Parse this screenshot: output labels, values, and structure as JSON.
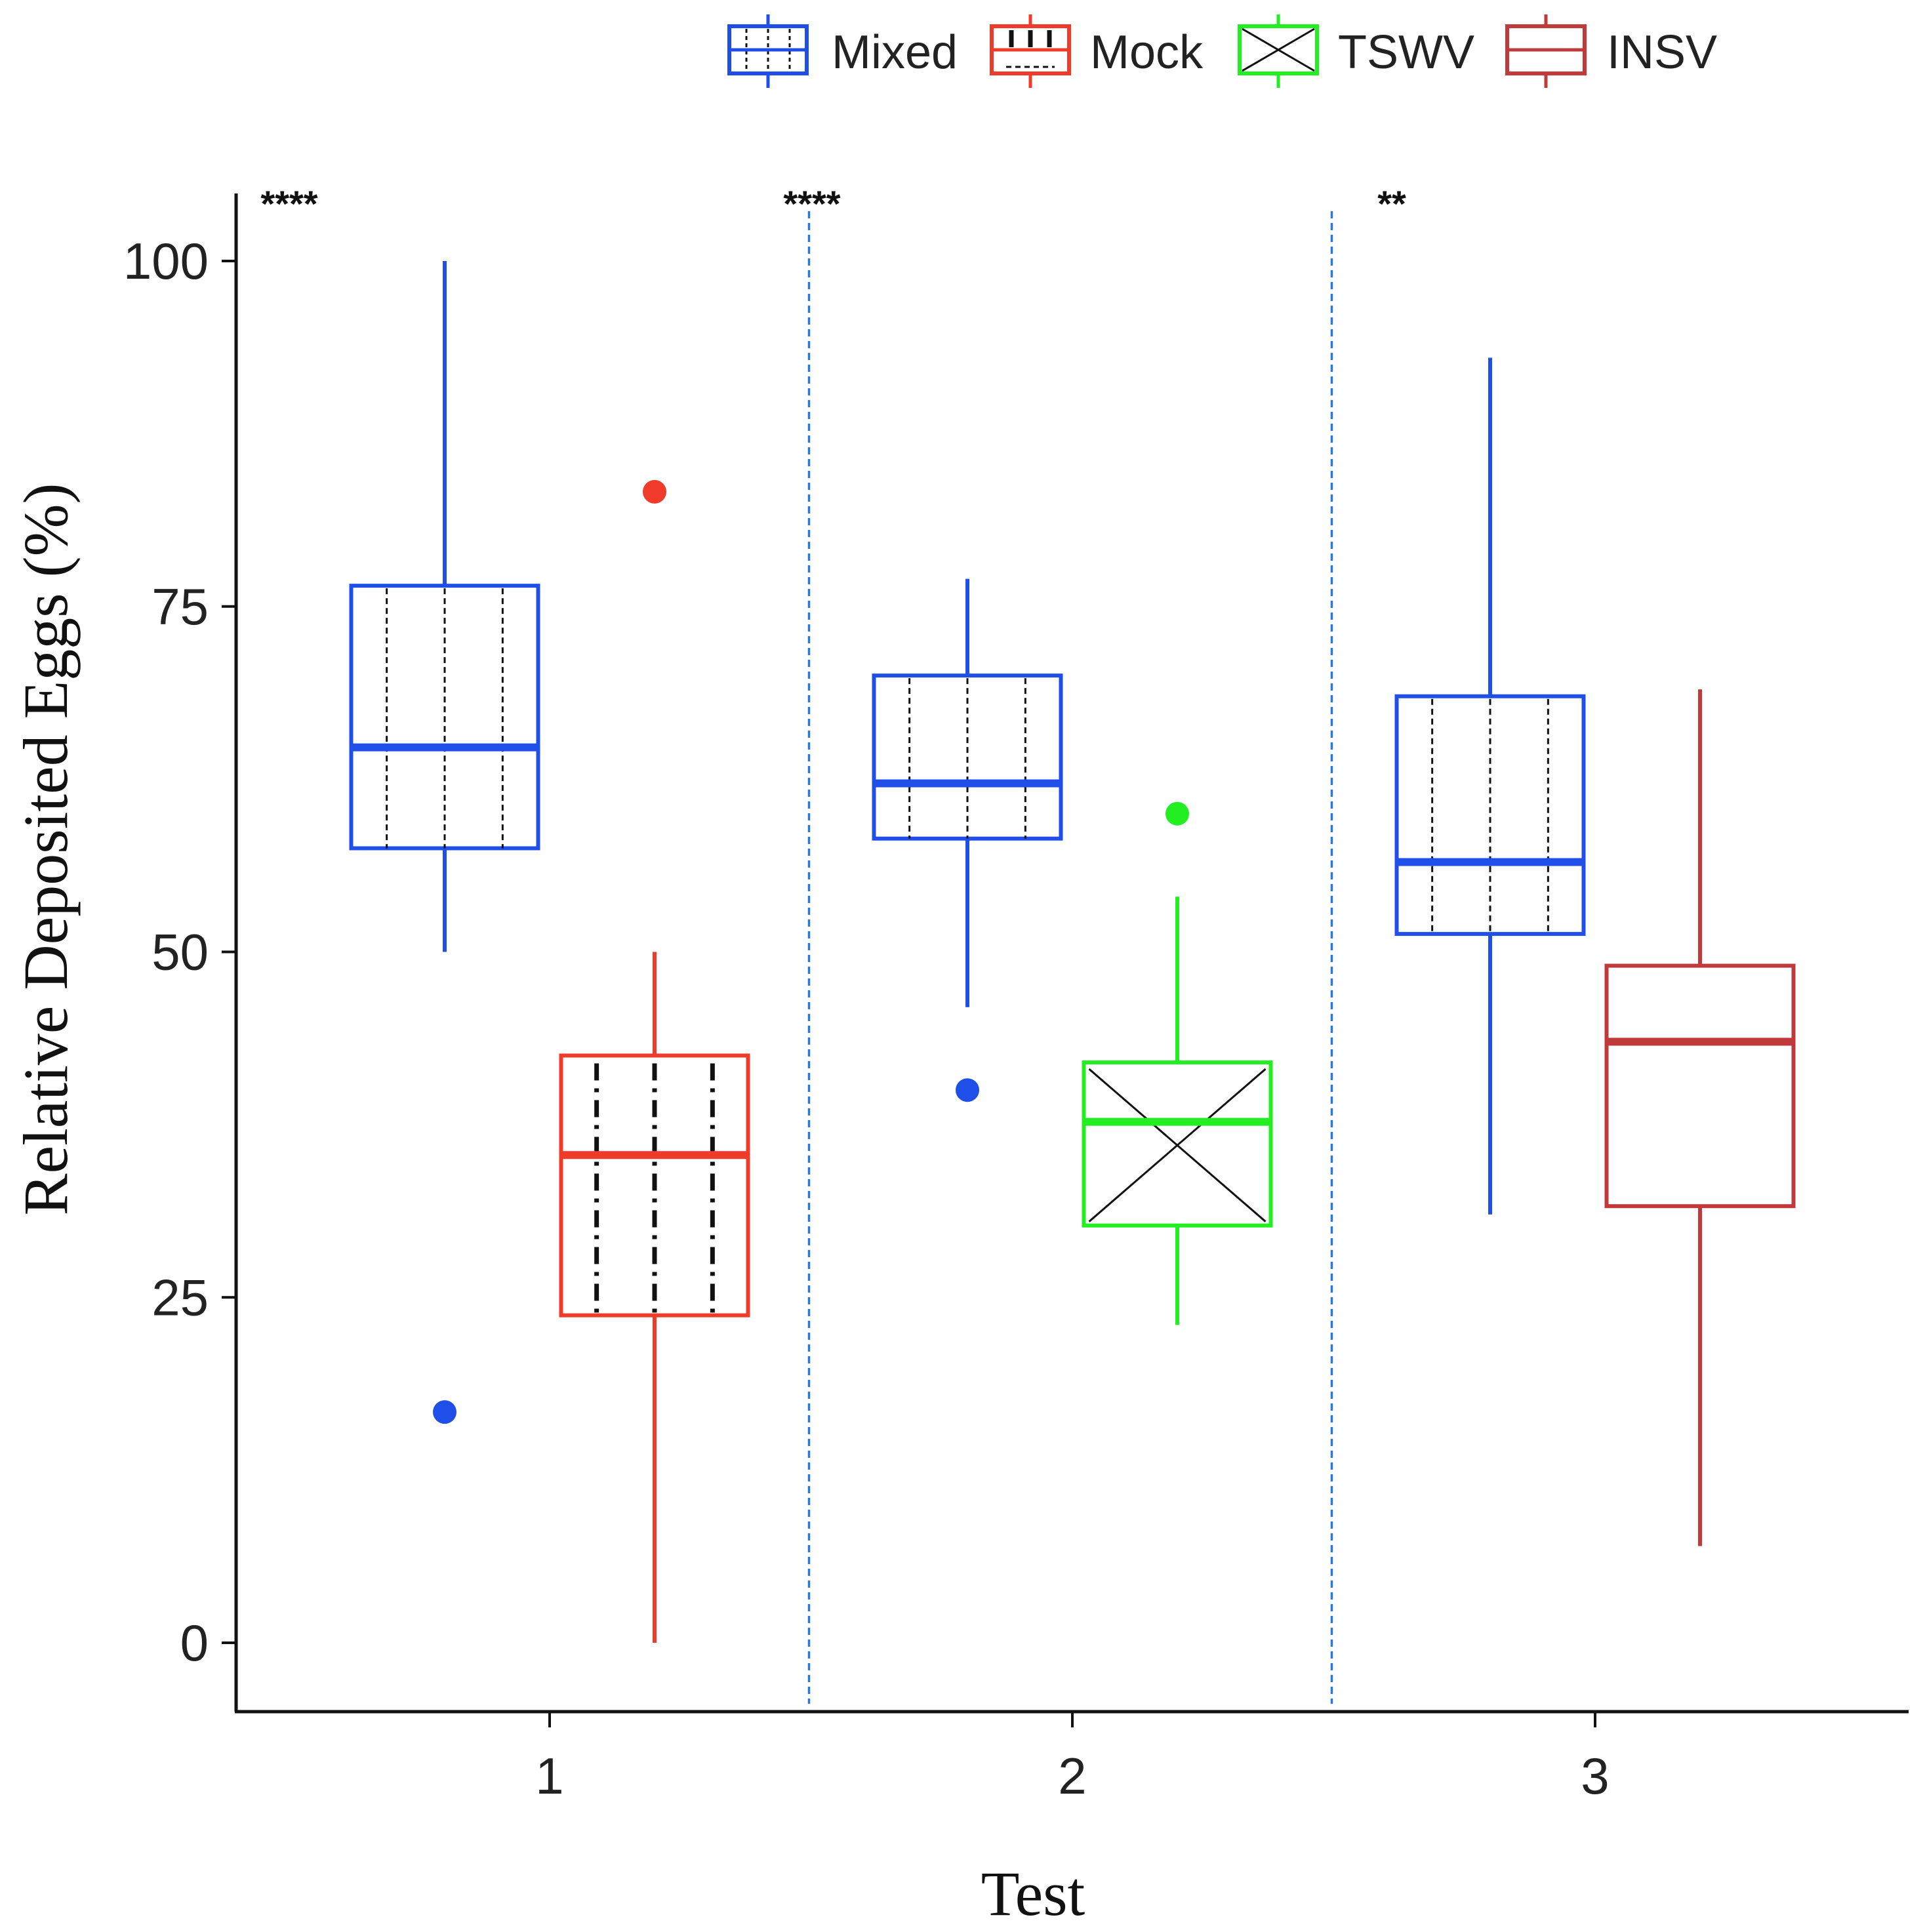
{
  "chart_data": {
    "type": "box",
    "title": "",
    "xlabel": "Test",
    "ylabel": "Relative Deposited Eggs (%)",
    "categories": [
      "1",
      "2",
      "3"
    ],
    "ylim": [
      -4,
      108
    ],
    "yticks": [
      0,
      25,
      50,
      75,
      100
    ],
    "legend": {
      "placement": "top",
      "entries": [
        "Mixed",
        "Mock",
        "TSWV",
        "INSV"
      ]
    },
    "significance": [
      "****",
      "****",
      "**"
    ],
    "series": [
      {
        "name": "Mixed",
        "color": "#1f4fe8",
        "pattern": "vdash",
        "boxes": [
          {
            "test": "1",
            "min": 50,
            "q1": 57.5,
            "median": 64.8,
            "q3": 76.5,
            "max": 100,
            "outliers": [
              16.7
            ]
          },
          {
            "test": "2",
            "min": 46,
            "q1": 58.2,
            "median": 62.2,
            "q3": 70.0,
            "max": 77,
            "outliers": [
              40
            ]
          },
          {
            "test": "3",
            "min": 31,
            "q1": 51.3,
            "median": 56.5,
            "q3": 68.5,
            "max": 93,
            "outliers": []
          }
        ]
      },
      {
        "name": "Mock",
        "color": "#f03a2a",
        "pattern": "dashdot",
        "boxes": [
          {
            "test": "1",
            "min": 0,
            "q1": 23.7,
            "median": 35.3,
            "q3": 42.5,
            "max": 50,
            "outliers": [
              83.3
            ]
          }
        ]
      },
      {
        "name": "TSWV",
        "color": "#22ee22",
        "pattern": "cross",
        "boxes": [
          {
            "test": "2",
            "min": 23,
            "q1": 30.2,
            "median": 37.7,
            "q3": 42.0,
            "max": 54,
            "outliers": [
              60
            ]
          }
        ]
      },
      {
        "name": "INSV",
        "color": "#c0393b",
        "pattern": "none",
        "boxes": [
          {
            "test": "3",
            "min": 7,
            "q1": 31.6,
            "median": 43.5,
            "q3": 49.0,
            "max": 69,
            "outliers": []
          }
        ]
      }
    ]
  }
}
